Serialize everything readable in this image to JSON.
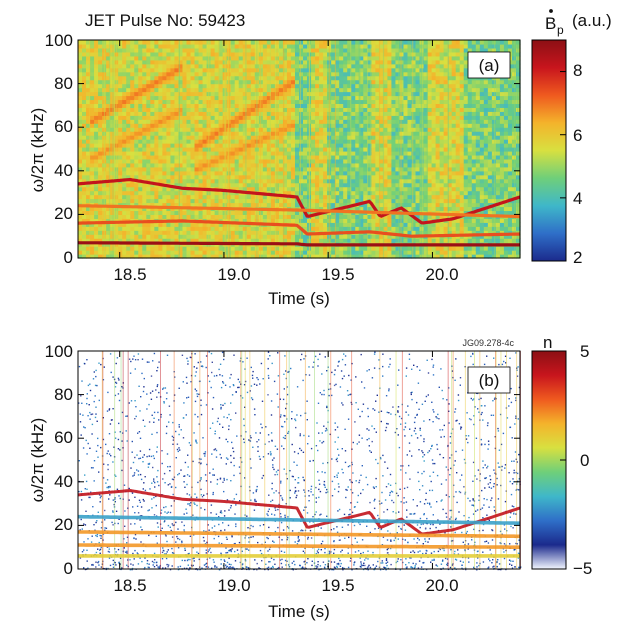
{
  "chart_data": [
    {
      "type": "heatmap",
      "panel_label": "(a)",
      "title": "JET Pulse No: 59423",
      "xlabel": "Time (s)",
      "ylabel": "ω/2π (kHz)",
      "xlim": [
        18.3,
        20.42
      ],
      "ylim": [
        0,
        100
      ],
      "xticks": [
        18.5,
        19.0,
        19.5,
        20.0
      ],
      "xtick_labels": [
        "18.5",
        "19.0",
        "19.5",
        "20.0"
      ],
      "yticks": [
        0,
        20,
        40,
        60,
        80,
        100
      ],
      "ytick_labels": [
        "0",
        "20",
        "40",
        "60",
        "80",
        "100"
      ],
      "colorbar": {
        "label_main": "B",
        "label_sub": "p",
        "label_unit": "(a.u.)",
        "range": [
          2,
          9
        ],
        "ticks": [
          2,
          4,
          6,
          8
        ],
        "tick_labels": [
          "2",
          "4",
          "6",
          "8"
        ],
        "colors": [
          "#1b2a8c",
          "#2f6fc8",
          "#3fb7c9",
          "#6fcf7a",
          "#d8e040",
          "#f4b32b",
          "#ef5a1f",
          "#c8151d",
          "#8c0f14"
        ]
      },
      "background_level": 5.6,
      "mode_bands": [
        {
          "t": [
            18.3,
            18.55,
            18.8,
            19.0,
            19.35,
            19.4,
            19.7,
            19.75,
            19.85,
            19.95,
            20.1,
            20.42
          ],
          "f": [
            34,
            36,
            32,
            31,
            28,
            19,
            26,
            19,
            23,
            16,
            18,
            28
          ],
          "intensity": 8.2
        },
        {
          "t": [
            18.3,
            19.35,
            19.4,
            20.42
          ],
          "f": [
            7,
            6.5,
            6,
            6
          ],
          "intensity": 8.8
        },
        {
          "t": [
            18.3,
            18.8,
            19.35,
            19.4,
            19.7,
            19.9,
            20.42
          ],
          "f": [
            16,
            17,
            15,
            11,
            12,
            10,
            11
          ],
          "intensity": 7.4
        },
        {
          "t": [
            18.3,
            19.35,
            20.42
          ],
          "f": [
            24,
            22,
            19
          ],
          "intensity": 7.0
        }
      ],
      "harmonic_bands": [
        {
          "t": [
            18.35,
            18.8
          ],
          "f": [
            62,
            88
          ],
          "intensity": 7.0
        },
        {
          "t": [
            18.35,
            18.8
          ],
          "f": [
            45,
            68
          ],
          "intensity": 6.8
        },
        {
          "t": [
            18.85,
            19.35
          ],
          "f": [
            50,
            82
          ],
          "intensity": 7.0
        },
        {
          "t": [
            18.85,
            19.35
          ],
          "f": [
            40,
            62
          ],
          "intensity": 6.8
        }
      ],
      "low_amplitude_intervals": [
        [
          19.35,
          19.42
        ],
        [
          19.5,
          19.7
        ],
        [
          19.8,
          19.98
        ],
        [
          20.15,
          20.42
        ]
      ]
    },
    {
      "type": "heatmap",
      "panel_label": "(b)",
      "annotation": "JG09.278-4c",
      "xlabel": "Time (s)",
      "ylabel": "ω/2π (kHz)",
      "xlim": [
        18.3,
        20.42
      ],
      "ylim": [
        0,
        100
      ],
      "xticks": [
        18.5,
        19.0,
        19.5,
        20.0
      ],
      "xtick_labels": [
        "18.5",
        "19.0",
        "19.5",
        "20.0"
      ],
      "yticks": [
        0,
        20,
        40,
        60,
        80,
        100
      ],
      "ytick_labels": [
        "0",
        "20",
        "40",
        "60",
        "80",
        "100"
      ],
      "colorbar": {
        "label_main": "n",
        "range": [
          -5,
          5
        ],
        "ticks": [
          -5,
          0,
          5
        ],
        "tick_labels": [
          "−5",
          "0",
          "5"
        ],
        "colors": [
          "#f2f6ff",
          "#1b2a8c",
          "#2f6fc8",
          "#3fb7c9",
          "#6fcf7a",
          "#d8e040",
          "#f4b32b",
          "#ef5a1f",
          "#c8151d",
          "#8c0f14"
        ]
      },
      "mode_bands": [
        {
          "t": [
            18.3,
            18.55,
            18.8,
            19.0,
            19.35,
            19.4,
            19.7,
            19.75,
            19.85,
            19.95,
            20.1,
            20.42
          ],
          "f": [
            34,
            36,
            32,
            31,
            28,
            19,
            26,
            19,
            23,
            16,
            18,
            28
          ],
          "n": 4
        },
        {
          "t": [
            18.3,
            20.42
          ],
          "f": [
            6,
            6
          ],
          "n": 1
        },
        {
          "t": [
            18.3,
            20.42
          ],
          "f": [
            11,
            10
          ],
          "n": 2
        },
        {
          "t": [
            18.3,
            20.42
          ],
          "f": [
            17,
            15
          ],
          "n": 2
        },
        {
          "t": [
            18.3,
            20.42
          ],
          "f": [
            24,
            21
          ],
          "n": -2
        }
      ]
    }
  ]
}
